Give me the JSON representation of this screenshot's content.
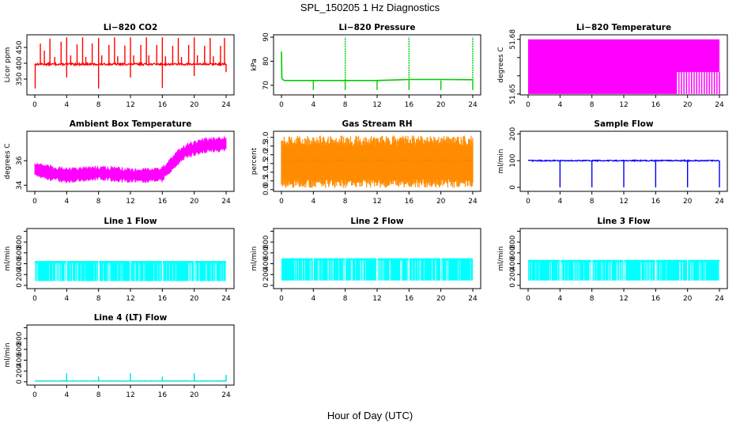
{
  "figure": {
    "title": "SPL_150205  1 Hz Diagnostics",
    "xlabel": "Hour of Day (UTC)"
  },
  "chart_data": [
    {
      "type": "line",
      "title": "Li−820 CO2",
      "ylabel": "Licor ppm",
      "color": "#ff0000",
      "xlim": [
        0,
        24
      ],
      "xticks": [
        0,
        4,
        8,
        12,
        16,
        20,
        24
      ],
      "ylim": [
        300,
        490
      ],
      "yticks": [
        350,
        400,
        450
      ],
      "ytick_labels": [
        "350",
        "400",
        "450"
      ],
      "baseline": 397,
      "noise": 3,
      "spikes_up": [
        [
          0.7,
          462
        ],
        [
          1.2,
          440
        ],
        [
          1.9,
          478
        ],
        [
          2.5,
          420
        ],
        [
          3.3,
          468
        ],
        [
          4.0,
          482
        ],
        [
          4.5,
          425
        ],
        [
          5.3,
          460
        ],
        [
          6.0,
          482
        ],
        [
          6.4,
          420
        ],
        [
          7.2,
          463
        ],
        [
          8.0,
          480
        ],
        [
          8.4,
          425
        ],
        [
          9.3,
          458
        ],
        [
          10.0,
          482
        ],
        [
          10.4,
          422
        ],
        [
          11.3,
          456
        ],
        [
          12.0,
          482
        ],
        [
          12.4,
          425
        ],
        [
          13.3,
          458
        ],
        [
          14.0,
          482
        ],
        [
          14.3,
          425
        ],
        [
          15.3,
          458
        ],
        [
          16.0,
          482
        ],
        [
          16.4,
          422
        ],
        [
          17.3,
          455
        ],
        [
          18.0,
          480
        ],
        [
          18.4,
          420
        ],
        [
          19.3,
          458
        ],
        [
          20.0,
          482
        ],
        [
          20.4,
          425
        ],
        [
          21.3,
          455
        ],
        [
          22.0,
          480
        ],
        [
          22.4,
          422
        ],
        [
          23.3,
          455
        ],
        [
          23.8,
          480
        ]
      ],
      "spikes_down": [
        [
          0.05,
          320
        ],
        [
          4.0,
          355
        ],
        [
          8.0,
          320
        ],
        [
          12.0,
          355
        ],
        [
          16.0,
          322
        ],
        [
          20.0,
          360
        ],
        [
          24.0,
          372
        ]
      ]
    },
    {
      "type": "line",
      "title": "Li−820 Pressure",
      "ylabel": "kPa",
      "color": "#00cc00",
      "xlim": [
        0,
        24
      ],
      "xticks": [
        0,
        4,
        8,
        12,
        16,
        20,
        24
      ],
      "ylim": [
        66,
        91
      ],
      "yticks": [
        70,
        80,
        90
      ],
      "ytick_labels": [
        "70",
        "80",
        "90"
      ],
      "series": [
        {
          "x": [
            0.0,
            0.05,
            0.15,
            0.3,
            0.5,
            4,
            8,
            12,
            16,
            20,
            24
          ],
          "y": [
            84,
            73,
            72.4,
            72.1,
            72,
            72,
            72,
            72,
            72.4,
            72.4,
            72.3
          ]
        }
      ],
      "spikes_up": [
        [
          8.0,
          90
        ],
        [
          16.0,
          90
        ],
        [
          24.0,
          90
        ]
      ],
      "spikes_down": [
        [
          4.0,
          68
        ],
        [
          8.0,
          68
        ],
        [
          12.0,
          68
        ],
        [
          16.0,
          68
        ],
        [
          20.0,
          68
        ],
        [
          24.0,
          68
        ]
      ]
    },
    {
      "type": "area",
      "title": "Li−820 Temperature",
      "ylabel": "degrees C",
      "color": "#ff00ff",
      "xlim": [
        0,
        24
      ],
      "xticks": [
        0,
        4,
        8,
        12,
        16,
        20,
        24
      ],
      "ylim": [
        51.6495,
        51.6825
      ],
      "yticks": [
        51.65,
        51.66,
        51.67,
        51.68
      ],
      "ytick_labels": [
        "51.65",
        "",
        "",
        "51.68"
      ],
      "band": [
        51.65,
        51.68
      ],
      "gaps_from_x": 18.6
    },
    {
      "type": "line",
      "title": "Ambient Box Temperature",
      "ylabel": "degrees C",
      "color": "#ff00ff",
      "xlim": [
        0,
        24
      ],
      "xticks": [
        0,
        4,
        8,
        12,
        16,
        20,
        24
      ],
      "ylim": [
        33.5,
        38.4
      ],
      "yticks": [
        34,
        36
      ],
      "ytick_labels": [
        "34",
        "36"
      ],
      "series": [
        {
          "x": [
            0,
            2,
            4,
            6,
            8,
            10,
            12,
            14,
            16,
            17,
            18,
            19,
            20,
            21,
            22,
            23,
            24
          ],
          "y": [
            35.3,
            35.0,
            34.8,
            34.9,
            35.0,
            34.9,
            34.8,
            34.8,
            34.9,
            35.6,
            36.3,
            36.8,
            37.0,
            37.2,
            37.3,
            37.3,
            37.4
          ]
        }
      ],
      "band_halfwidth": 0.45
    },
    {
      "type": "area",
      "title": "Gas Stream RH",
      "ylabel": "percent",
      "color": "#ff8c00",
      "xlim": [
        0,
        24
      ],
      "xticks": [
        0,
        4,
        8,
        12,
        16,
        20,
        24
      ],
      "ylim": [
        -0.1,
        3.35
      ],
      "yticks": [
        0,
        0.5,
        1,
        1.5,
        2,
        2.5,
        3
      ],
      "ytick_labels": [
        "0.0",
        "0.5",
        "1.0",
        "1.5",
        "2.0",
        "2.5",
        "3.0"
      ],
      "band": [
        0.6,
        2.5
      ],
      "envelope": [
        0.1,
        3.1
      ],
      "midline": 1.7
    },
    {
      "type": "line",
      "title": "Sample Flow",
      "ylabel": "ml/min",
      "color": "#0000ff",
      "xlim": [
        0,
        24
      ],
      "xticks": [
        0,
        4,
        8,
        12,
        16,
        20,
        24
      ],
      "ylim": [
        -15,
        210
      ],
      "yticks": [
        0,
        100,
        200
      ],
      "ytick_labels": [
        "0",
        "100",
        "200"
      ],
      "baseline": 100,
      "noise": 2,
      "spikes_down": [
        [
          4.0,
          0
        ],
        [
          8.0,
          0
        ],
        [
          12.0,
          0
        ],
        [
          16.0,
          0
        ],
        [
          20.0,
          0
        ],
        [
          24.0,
          0
        ]
      ]
    },
    {
      "type": "area",
      "title": "Line 1 Flow",
      "ylabel": "ml/min",
      "color": "#00ffff",
      "xlim": [
        0,
        24
      ],
      "xticks": [
        0,
        4,
        8,
        12,
        16,
        20,
        24
      ],
      "ylim": [
        -60,
        1050
      ],
      "yticks": [
        0,
        200,
        400,
        600,
        800,
        1000
      ],
      "ytick_labels": [
        "0",
        "200",
        "400",
        "600",
        "800",
        ""
      ],
      "band": [
        80,
        450
      ],
      "notches": [
        4.0,
        8.0,
        12.0,
        16.0,
        20.0
      ]
    },
    {
      "type": "area",
      "title": "Line 2 Flow",
      "ylabel": "ml/min",
      "color": "#00ffff",
      "xlim": [
        0,
        24
      ],
      "xticks": [
        0,
        4,
        8,
        12,
        16,
        20,
        24
      ],
      "ylim": [
        -60,
        1050
      ],
      "yticks": [
        0,
        200,
        400,
        600,
        800,
        1000
      ],
      "ytick_labels": [
        "0",
        "200",
        "400",
        "600",
        "800",
        ""
      ],
      "band": [
        90,
        500
      ],
      "notches": [
        4.0,
        8.0,
        12.0,
        16.0,
        20.0
      ]
    },
    {
      "type": "area",
      "title": "Line 3 Flow",
      "ylabel": "ml/min",
      "color": "#00ffff",
      "xlim": [
        0,
        24
      ],
      "xticks": [
        0,
        4,
        8,
        12,
        16,
        20,
        24
      ],
      "ylim": [
        -60,
        1050
      ],
      "yticks": [
        0,
        200,
        400,
        600,
        800,
        1000
      ],
      "ytick_labels": [
        "0",
        "200",
        "400",
        "600",
        "800",
        ""
      ],
      "band": [
        90,
        470
      ],
      "notches": [
        4.0,
        8.0,
        12.0,
        16.0,
        20.0
      ]
    },
    {
      "type": "line",
      "title": "Line 4 (LT) Flow",
      "ylabel": "ml/min",
      "color": "#00dddd",
      "xlim": [
        0,
        24
      ],
      "xticks": [
        0,
        4,
        8,
        12,
        16,
        20,
        24
      ],
      "ylim": [
        -60,
        1050
      ],
      "yticks": [
        0,
        200,
        400,
        600,
        800,
        1000
      ],
      "ytick_labels": [
        "0",
        "200",
        "400",
        "600",
        "800",
        ""
      ],
      "baseline": 15,
      "noise": 3,
      "spikes_up": [
        [
          4.0,
          160
        ],
        [
          8.0,
          95
        ],
        [
          12.0,
          160
        ],
        [
          16.0,
          95
        ],
        [
          20.0,
          160
        ],
        [
          24.0,
          130
        ]
      ]
    }
  ]
}
